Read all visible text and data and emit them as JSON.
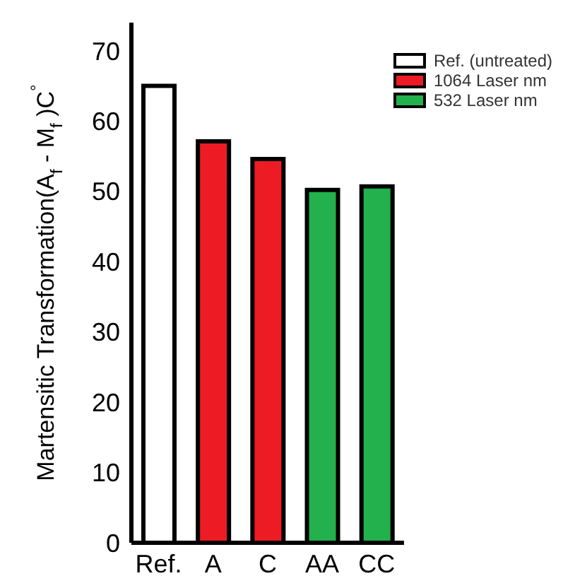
{
  "chart_data": {
    "type": "bar",
    "ylabel": "Martensitic Transformation(A$_{f}$ - M$_{f}$ )C$^{°}$",
    "categories": [
      "Ref.",
      "A",
      "C",
      "AA",
      "CC"
    ],
    "stacked": true,
    "series": [
      {
        "name": "Ref. (untreated)",
        "color": "#ffffff",
        "values": [
          65,
          null,
          null,
          null,
          null
        ]
      },
      {
        "name": "1064 Laser nm",
        "color": "#ed1c24",
        "values": [
          null,
          57.1,
          54.6,
          null,
          null
        ]
      },
      {
        "name": "532 Laser nm",
        "color": "#22b14c",
        "values": [
          null,
          null,
          null,
          50.2,
          50.7
        ]
      }
    ],
    "ylim": [
      0,
      74
    ],
    "yticks": [
      0,
      10,
      20,
      30,
      40,
      50,
      60,
      70
    ],
    "grid": false,
    "legend": "top right"
  }
}
